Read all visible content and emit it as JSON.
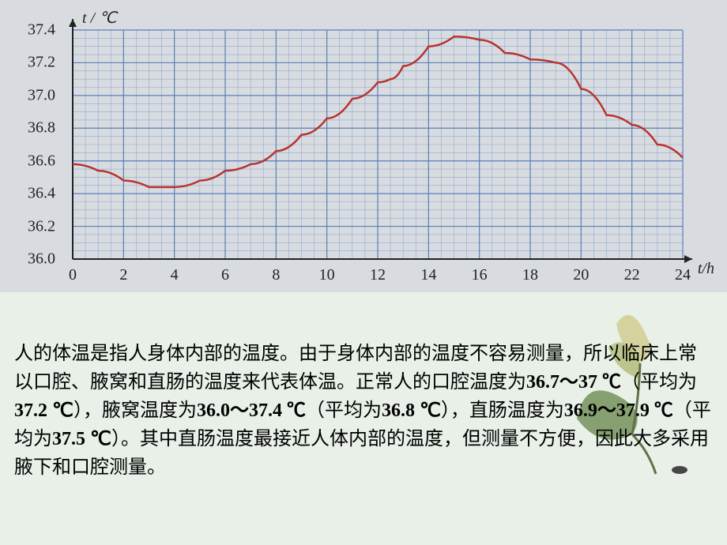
{
  "chart": {
    "type": "line",
    "y_label": "t / ℃",
    "x_label": "t/h",
    "xlim": [
      0,
      24
    ],
    "ylim": [
      36.0,
      37.4
    ],
    "x_ticks": [
      0,
      2,
      4,
      6,
      8,
      10,
      12,
      14,
      16,
      18,
      20,
      22,
      24
    ],
    "y_ticks": [
      36.0,
      36.2,
      36.4,
      36.6,
      36.8,
      37.0,
      37.2,
      37.4
    ],
    "minor_step_x": 0.5,
    "minor_step_y": 0.05,
    "background_color": "#d8dce0",
    "grid_color": "#5a7fb8",
    "grid_minor_color": "#8fa8d0",
    "line_color": "#b83330",
    "line_width": 2.5,
    "axis_color": "#222222",
    "tick_font_size": 20,
    "label_font_size": 20,
    "data": [
      [
        0,
        36.58
      ],
      [
        1,
        36.54
      ],
      [
        2,
        36.48
      ],
      [
        3,
        36.44
      ],
      [
        4,
        36.44
      ],
      [
        5,
        36.48
      ],
      [
        6,
        36.54
      ],
      [
        7,
        36.58
      ],
      [
        8,
        36.66
      ],
      [
        9,
        36.76
      ],
      [
        10,
        36.86
      ],
      [
        11,
        36.98
      ],
      [
        12,
        37.08
      ],
      [
        12.5,
        37.1
      ],
      [
        13,
        37.18
      ],
      [
        14,
        37.3
      ],
      [
        15,
        37.36
      ],
      [
        16,
        37.34
      ],
      [
        17,
        37.26
      ],
      [
        18,
        37.22
      ],
      [
        19,
        37.2
      ],
      [
        20,
        37.04
      ],
      [
        21,
        36.88
      ],
      [
        22,
        36.82
      ],
      [
        23,
        36.7
      ],
      [
        24,
        36.62
      ]
    ]
  },
  "text": {
    "p1a": "人的体温是指人身体内部的温度。由于身体内部的温度不容易测量，所以临床上常以口腔、腋窝和直肠的温度来代表体温。正常人的口腔温度为",
    "v1": "36.7～37 ℃",
    "p1b": "（平均为",
    "v2": "37.2 ℃",
    "p1c": "），腋窝温度为",
    "v3": "36.0～37.4 ℃",
    "p1d": "（平均为",
    "v4": "36.8 ℃",
    "p1e": "），直肠温度为",
    "v5": "36.9～37.9 ℃",
    "p1f": "（平均为",
    "v6": "37.5 ℃",
    "p1g": "）。其中直肠温度最接近人体内部的温度，但测量不方便，因此大多采用腋下和口腔测量。"
  }
}
